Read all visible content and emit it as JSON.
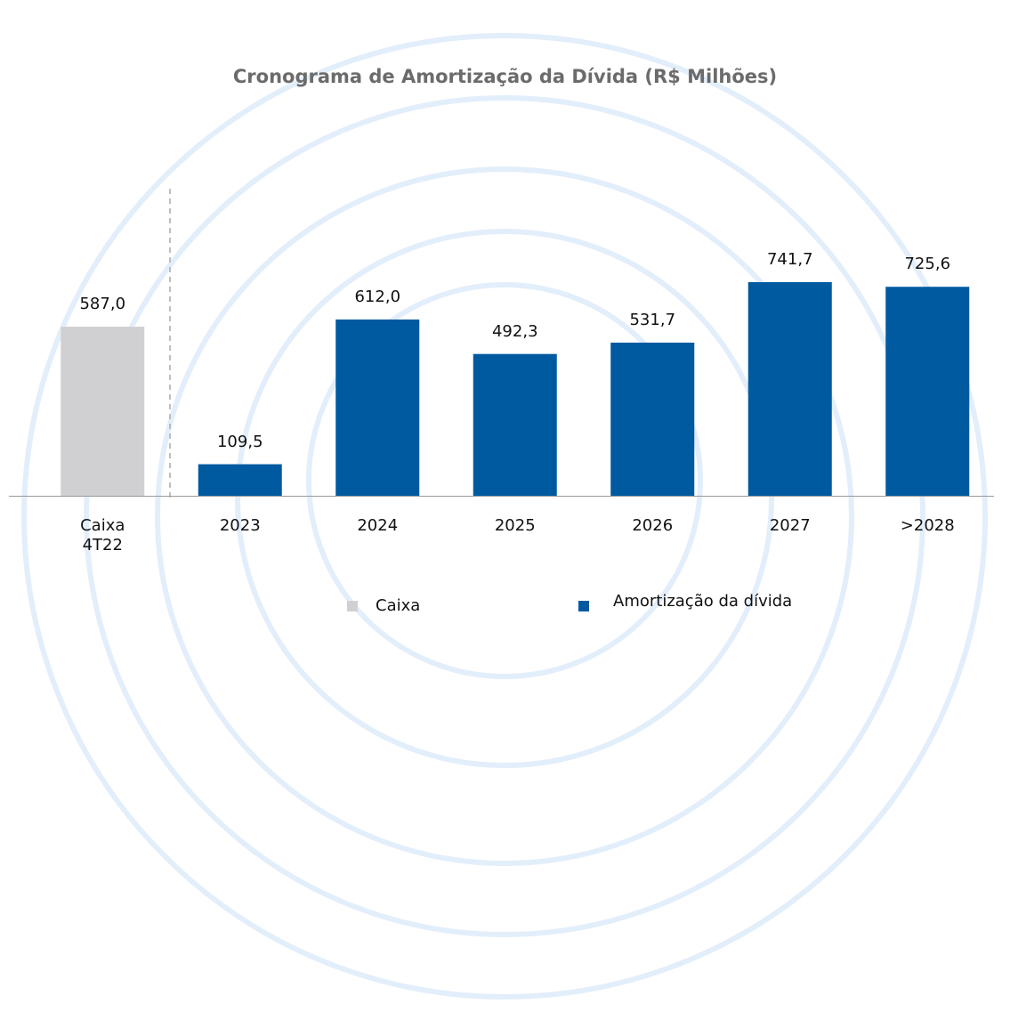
{
  "chart_data": {
    "type": "bar",
    "title": "Cronograma de Amortização da Dívida (R$ Milhões)",
    "categories": [
      "Caixa 4T22",
      "2023",
      "2024",
      "2025",
      "2026",
      "2027",
      ">2028"
    ],
    "series": [
      {
        "name": "Caixa",
        "color": "#d0d0d2",
        "values": [
          587.0,
          null,
          null,
          null,
          null,
          null,
          null
        ],
        "value_labels": [
          "587,0",
          null,
          null,
          null,
          null,
          null,
          null
        ]
      },
      {
        "name": "Amortização da dívida",
        "color": "#005aa0",
        "values": [
          null,
          109.5,
          612.0,
          492.3,
          531.7,
          741.7,
          725.6
        ],
        "value_labels": [
          null,
          "109,5",
          "612,0",
          "492,3",
          "531,7",
          "741,7",
          "725,6"
        ]
      }
    ]
  }
}
